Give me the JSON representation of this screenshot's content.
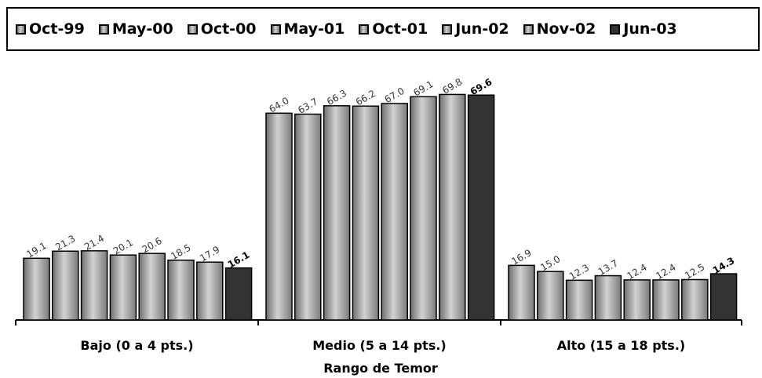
{
  "chart_data": {
    "type": "bar",
    "title": "",
    "xlabel": "Rango de Temor",
    "ylabel": "",
    "ylim": [
      0,
      80
    ],
    "grid": false,
    "legend_position": "top",
    "categories": [
      "Bajo (0 a 4 pts.)",
      "Medio (5 a 14 pts.)",
      "Alto (15 a 18 pts.)"
    ],
    "series": [
      {
        "name": "Oct-99",
        "values": [
          19.1,
          64.0,
          16.9
        ],
        "labels": [
          "19.1",
          "64.0",
          "16.9"
        ],
        "color": "#9a9a9a"
      },
      {
        "name": "May-00",
        "values": [
          21.3,
          63.7,
          15.0
        ],
        "labels": [
          "21.3",
          "63.7",
          "15.0"
        ],
        "color": "#9a9a9a"
      },
      {
        "name": "Oct-00",
        "values": [
          21.4,
          66.3,
          12.3
        ],
        "labels": [
          "21.4",
          "66.3",
          "12.3"
        ],
        "color": "#9a9a9a"
      },
      {
        "name": "May-01",
        "values": [
          20.1,
          66.2,
          13.7
        ],
        "labels": [
          "20.1",
          "66.2",
          "13.7"
        ],
        "color": "#9a9a9a"
      },
      {
        "name": "Oct-01",
        "values": [
          20.6,
          67.0,
          12.4
        ],
        "labels": [
          "20.6",
          "67.0",
          "12.4"
        ],
        "color": "#9a9a9a"
      },
      {
        "name": "Jun-02",
        "values": [
          18.5,
          69.1,
          12.4
        ],
        "labels": [
          "18.5",
          "69.1",
          "12.4"
        ],
        "color": "#9a9a9a"
      },
      {
        "name": "Nov-02",
        "values": [
          17.9,
          69.8,
          12.5
        ],
        "labels": [
          "17.9",
          "69.8",
          "12.5"
        ],
        "color": "#9a9a9a"
      },
      {
        "name": "Jun-03",
        "values": [
          16.1,
          69.6,
          14.3
        ],
        "labels": [
          "16.1",
          "69.6",
          "14.3"
        ],
        "color": "#333333",
        "emphasized": true
      }
    ]
  }
}
